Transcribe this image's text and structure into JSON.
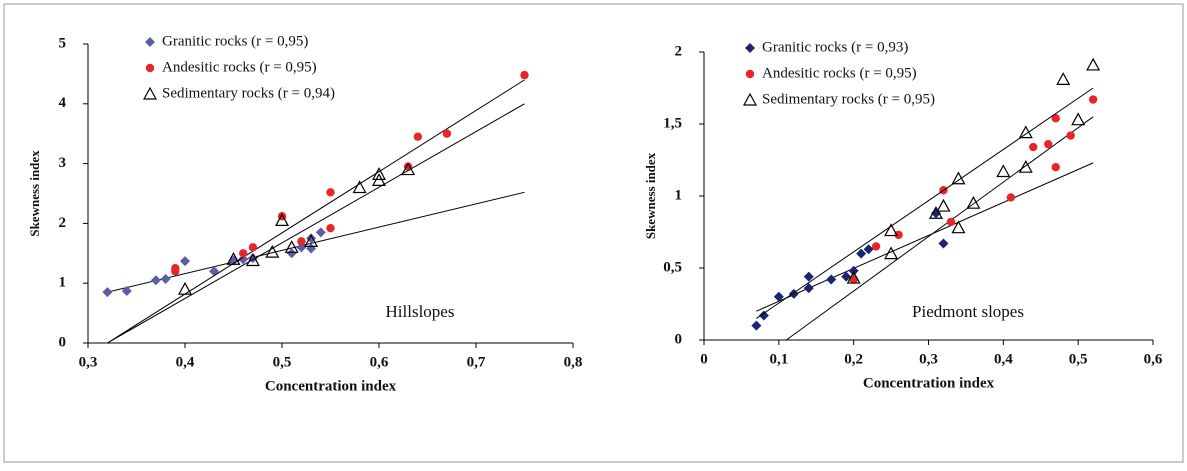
{
  "chart_data": [
    {
      "type": "scatter",
      "x_label": "Concentration index",
      "y_label": "Skewness index",
      "annotation": "Hillslopes",
      "xlim": [
        0.3,
        0.8
      ],
      "ylim": [
        0,
        5
      ],
      "xticks": [
        {
          "value": 0.3,
          "label": "0,3"
        },
        {
          "value": 0.4,
          "label": "0,4"
        },
        {
          "value": 0.5,
          "label": "0,5"
        },
        {
          "value": 0.6,
          "label": "0,6"
        },
        {
          "value": 0.7,
          "label": "0,7"
        },
        {
          "value": 0.8,
          "label": "0,8"
        }
      ],
      "yticks": [
        0,
        1,
        2,
        3,
        4,
        5
      ],
      "series": [
        {
          "name": "Granitic rocks (r = 0,95)",
          "color": "#5b5ea6",
          "marker": "diamond",
          "x": [
            0.32,
            0.34,
            0.37,
            0.38,
            0.4,
            0.43,
            0.45,
            0.46,
            0.47,
            0.51,
            0.52,
            0.53,
            0.54,
            0.53
          ],
          "y": [
            0.85,
            0.87,
            1.05,
            1.07,
            1.37,
            1.2,
            1.38,
            1.4,
            1.42,
            1.5,
            1.6,
            1.58,
            1.85,
            1.75
          ],
          "trend": {
            "x": [
              0.32,
              0.75
            ],
            "y": [
              0.85,
              2.52
            ]
          }
        },
        {
          "name": "Andesitic rocks (r = 0,95)",
          "color": "#e8262a",
          "marker": "circle",
          "x": [
            0.39,
            0.39,
            0.46,
            0.47,
            0.5,
            0.52,
            0.55,
            0.55,
            0.63,
            0.64,
            0.67,
            0.75
          ],
          "y": [
            1.2,
            1.25,
            1.5,
            1.6,
            2.12,
            1.7,
            2.52,
            1.92,
            2.95,
            3.45,
            3.5,
            4.48
          ],
          "trend": {
            "x": [
              0.32,
              0.75
            ],
            "y": [
              0,
              4.4
            ]
          }
        },
        {
          "name": "Sedimentary rocks (r = 0,94)",
          "color": "#000000",
          "marker": "triangle",
          "x": [
            0.4,
            0.45,
            0.47,
            0.49,
            0.5,
            0.51,
            0.53,
            0.58,
            0.6,
            0.6,
            0.63
          ],
          "y": [
            0.9,
            1.4,
            1.38,
            1.52,
            2.05,
            1.6,
            1.7,
            2.6,
            2.72,
            2.82,
            2.9
          ],
          "trend": {
            "x": [
              0.32,
              0.75
            ],
            "y": [
              0,
              4.0
            ]
          }
        }
      ]
    },
    {
      "type": "scatter",
      "x_label": "Concentration index",
      "y_label": "Skewness index",
      "annotation": "Piedmont slopes",
      "xlim": [
        0,
        0.6
      ],
      "ylim": [
        0,
        2
      ],
      "xticks": [
        0,
        {
          "value": 0.1,
          "label": "0,1"
        },
        {
          "value": 0.2,
          "label": "0,2"
        },
        {
          "value": 0.3,
          "label": "0,3"
        },
        {
          "value": 0.4,
          "label": "0,4"
        },
        {
          "value": 0.5,
          "label": "0,5"
        },
        {
          "value": 0.6,
          "label": "0,6"
        }
      ],
      "yticks": [
        0,
        {
          "value": 0.5,
          "label": "0,5"
        },
        1,
        {
          "value": 1.5,
          "label": "1,5"
        },
        2
      ],
      "series": [
        {
          "name": "Granitic rocks (r = 0,93)",
          "color": "#1a2470",
          "marker": "diamond",
          "x": [
            0.07,
            0.08,
            0.1,
            0.12,
            0.14,
            0.14,
            0.17,
            0.19,
            0.2,
            0.21,
            0.22,
            0.31,
            0.32
          ],
          "y": [
            0.1,
            0.17,
            0.3,
            0.32,
            0.44,
            0.36,
            0.42,
            0.44,
            0.48,
            0.6,
            0.63,
            0.88,
            0.67
          ],
          "trend": {
            "x": [
              0.07,
              0.52
            ],
            "y": [
              0.2,
              1.23
            ]
          }
        },
        {
          "name": "Andesitic rocks (r = 0,95)",
          "color": "#e8262a",
          "marker": "circle",
          "x": [
            0.2,
            0.23,
            0.26,
            0.32,
            0.33,
            0.41,
            0.44,
            0.46,
            0.47,
            0.47,
            0.49,
            0.52
          ],
          "y": [
            0.42,
            0.65,
            0.73,
            1.04,
            0.82,
            0.99,
            1.34,
            1.36,
            1.2,
            1.54,
            1.42,
            1.67
          ],
          "trend": {
            "x": [
              0.11,
              0.52
            ],
            "y": [
              0,
              1.55
            ]
          }
        },
        {
          "name": "Sedimentary rocks (r = 0,95)",
          "color": "#000000",
          "marker": "triangle",
          "x": [
            0.2,
            0.25,
            0.25,
            0.31,
            0.32,
            0.34,
            0.34,
            0.36,
            0.4,
            0.43,
            0.43,
            0.48,
            0.5,
            0.52
          ],
          "y": [
            0.43,
            0.6,
            0.76,
            0.88,
            0.93,
            1.12,
            0.78,
            0.95,
            1.17,
            1.2,
            1.44,
            1.81,
            1.53,
            1.91
          ],
          "trend": {
            "x": [
              0.07,
              0.52
            ],
            "y": [
              0.15,
              1.75
            ]
          }
        }
      ]
    }
  ]
}
